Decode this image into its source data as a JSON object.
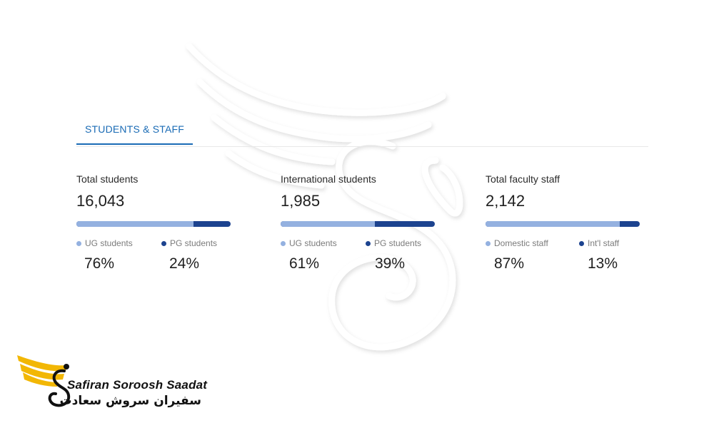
{
  "tabs": [
    {
      "label": "STUDENTS & STAFF",
      "active": true
    }
  ],
  "stats": [
    {
      "label": "Total students",
      "value": "16,043",
      "split_fraction": 0.76,
      "legend": [
        {
          "label": "UG students",
          "percent": "76%",
          "color": "#94b1e0"
        },
        {
          "label": "PG students",
          "percent": "24%",
          "color": "#1c438f"
        }
      ]
    },
    {
      "label": "International students",
      "value": "1,985",
      "split_fraction": 0.61,
      "legend": [
        {
          "label": "UG students",
          "percent": "61%",
          "color": "#94b1e0"
        },
        {
          "label": "PG students",
          "percent": "39%",
          "color": "#1c438f"
        }
      ]
    },
    {
      "label": "Total faculty staff",
      "value": "2,142",
      "split_fraction": 0.87,
      "legend": [
        {
          "label": "Domestic staff",
          "percent": "87%",
          "color": "#94b1e0"
        },
        {
          "label": "Int'l staff",
          "percent": "13%",
          "color": "#1c438f"
        }
      ]
    }
  ],
  "logo": {
    "name_en": "Safiran Soroosh Saadat",
    "name_fa": "سفیران سروش سعادت"
  },
  "colors": {
    "accent": "#1a6bb5",
    "bar_light": "#94b1e0",
    "bar_dark": "#1c438f",
    "logo_yellow": "#f2b705"
  },
  "icons": [
    "watermark-bird-icon",
    "logo-wing-icon"
  ]
}
